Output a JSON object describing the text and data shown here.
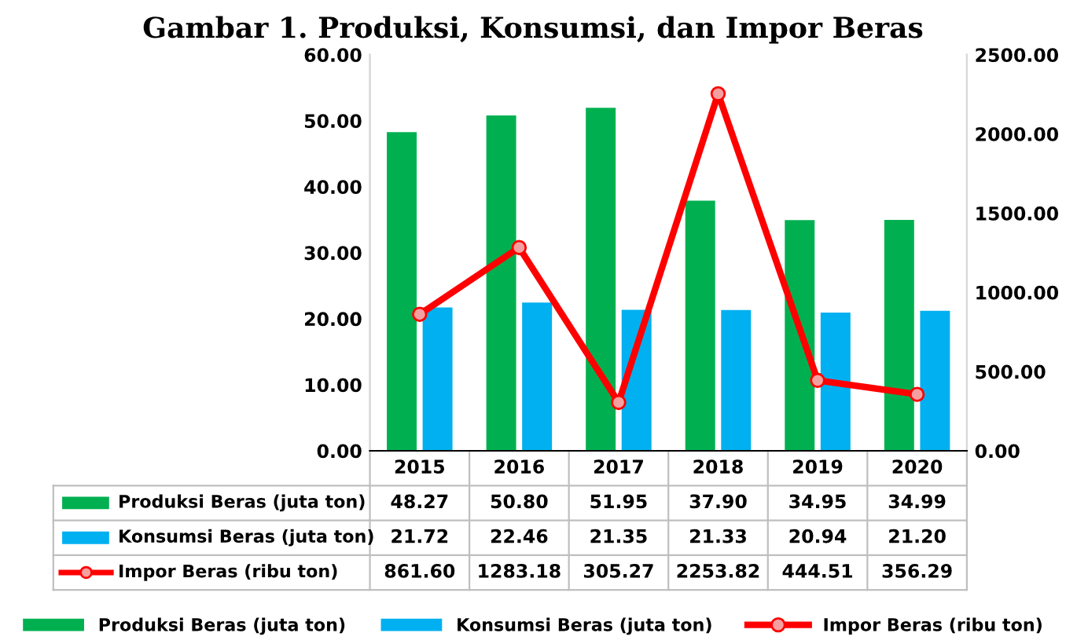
{
  "chart_data": {
    "type": "bar",
    "title": "Gambar 1. Produksi, Konsumsi, dan Impor Beras",
    "categories": [
      "2015",
      "2016",
      "2017",
      "2018",
      "2019",
      "2020"
    ],
    "series": [
      {
        "name": "Produksi Beras (juta ton)",
        "color": "#00b050",
        "values": [
          48.27,
          50.8,
          51.95,
          37.9,
          34.95,
          34.99
        ],
        "value_labels": [
          "48.27",
          "50.80",
          "51.95",
          "37.90",
          "34.95",
          "34.99"
        ]
      },
      {
        "name": "Konsumsi Beras (juta ton)",
        "color": "#00b0f0",
        "values": [
          21.72,
          22.46,
          21.35,
          21.33,
          20.94,
          21.2
        ],
        "value_labels": [
          "21.72",
          "22.46",
          "21.35",
          "21.33",
          "20.94",
          "21.20"
        ]
      },
      {
        "name": "Impor Beras (ribu ton)",
        "type": "line",
        "axis": "y2",
        "color": "#ff0000",
        "marker": "circle",
        "values": [
          861.6,
          1283.18,
          305.27,
          2253.82,
          444.51,
          356.29
        ],
        "value_labels": [
          "861.60",
          "1283.18",
          "305.27",
          "2253.82",
          "444.51",
          "356.29"
        ]
      }
    ],
    "ylim": [
      0,
      60
    ],
    "yticks": [
      {
        "value": 0,
        "label": "0.00"
      },
      {
        "value": 10,
        "label": "10.00"
      },
      {
        "value": 20,
        "label": "20.00"
      },
      {
        "value": 30,
        "label": "30.00"
      },
      {
        "value": 40,
        "label": "40.00"
      },
      {
        "value": 50,
        "label": "50.00"
      },
      {
        "value": 60,
        "label": "60.00"
      }
    ],
    "y2lim": [
      0,
      2500
    ],
    "y2ticks": [
      {
        "value": 0,
        "label": "0.00"
      },
      {
        "value": 500,
        "label": "500.00"
      },
      {
        "value": 1000,
        "label": "1000.00"
      },
      {
        "value": 1500,
        "label": "1500.00"
      },
      {
        "value": 2000,
        "label": "2000.00"
      },
      {
        "value": 2500,
        "label": "2500.00"
      }
    ],
    "legend": "bottom",
    "grid": false
  }
}
